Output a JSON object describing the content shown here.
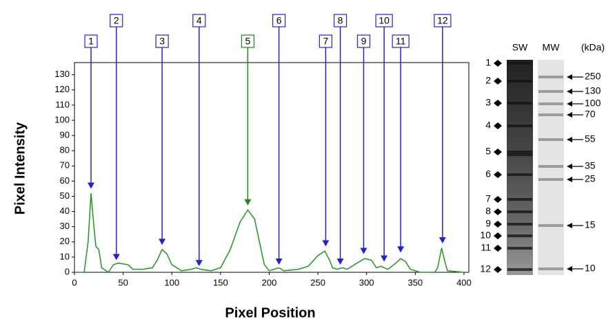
{
  "chart_data": {
    "type": "line",
    "xlabel": "Pixel Position",
    "ylabel": "Pixel Intensity",
    "color": "#1a9a1a",
    "x": [
      0,
      10,
      14,
      17,
      20,
      22,
      25,
      28,
      35,
      40,
      45,
      55,
      60,
      70,
      80,
      85,
      90,
      95,
      100,
      110,
      120,
      125,
      130,
      140,
      150,
      160,
      170,
      178,
      185,
      190,
      195,
      200,
      205,
      210,
      215,
      230,
      240,
      250,
      257,
      262,
      265,
      270,
      275,
      280,
      290,
      298,
      305,
      310,
      315,
      318,
      322,
      330,
      335,
      340,
      345,
      355,
      370,
      373,
      377,
      380,
      383,
      400
    ],
    "values": [
      0,
      0,
      20,
      52,
      30,
      17,
      15,
      3,
      0,
      5,
      6,
      5,
      2,
      2,
      3,
      8,
      15,
      12,
      5,
      1,
      2,
      3,
      2,
      1,
      3,
      15,
      33,
      41,
      35,
      20,
      5,
      1,
      2,
      3,
      1,
      2,
      4,
      11,
      14,
      8,
      3,
      2,
      3,
      2,
      6,
      9,
      8,
      3,
      4,
      3,
      2,
      6,
      9,
      7,
      2,
      0,
      0,
      3,
      16,
      8,
      1,
      0
    ],
    "xlim": [
      0,
      405
    ],
    "ylim": [
      0,
      138
    ],
    "xticks": [
      0,
      50,
      100,
      150,
      200,
      250,
      300,
      350,
      400
    ],
    "yticks": [
      0,
      10,
      20,
      30,
      40,
      50,
      60,
      70,
      80,
      90,
      100,
      110,
      120,
      130
    ],
    "annotations": [
      {
        "label": "1",
        "x": 17,
        "y": 55,
        "color": "#2020e0"
      },
      {
        "label": "2",
        "x": 43,
        "y": 8,
        "color": "#2020e0"
      },
      {
        "label": "3",
        "x": 90,
        "y": 18,
        "color": "#2020e0"
      },
      {
        "label": "4",
        "x": 128,
        "y": 4,
        "color": "#2020e0"
      },
      {
        "label": "5",
        "x": 178,
        "y": 44,
        "color": "#1a8a1a"
      },
      {
        "label": "6",
        "x": 210,
        "y": 5,
        "color": "#2020e0"
      },
      {
        "label": "7",
        "x": 258,
        "y": 17,
        "color": "#2020e0"
      },
      {
        "label": "8",
        "x": 273,
        "y": 5,
        "color": "#2020e0"
      },
      {
        "label": "9",
        "x": 297,
        "y": 12,
        "color": "#2020e0"
      },
      {
        "label": "10",
        "x": 318,
        "y": 7,
        "color": "#2020e0"
      },
      {
        "label": "11",
        "x": 335,
        "y": 13,
        "color": "#2020e0"
      },
      {
        "label": "12",
        "x": 378,
        "y": 19,
        "color": "#2020e0"
      }
    ]
  },
  "gel": {
    "lane_titles": [
      "SW",
      "MW",
      "(kDa)"
    ],
    "bands": [
      "1",
      "2",
      "3",
      "4",
      "5",
      "6",
      "7",
      "8",
      "9",
      "10",
      "11",
      "12"
    ],
    "markers": [
      "250",
      "130",
      "100",
      "70",
      "55",
      "35",
      "25",
      "15",
      "10"
    ]
  }
}
